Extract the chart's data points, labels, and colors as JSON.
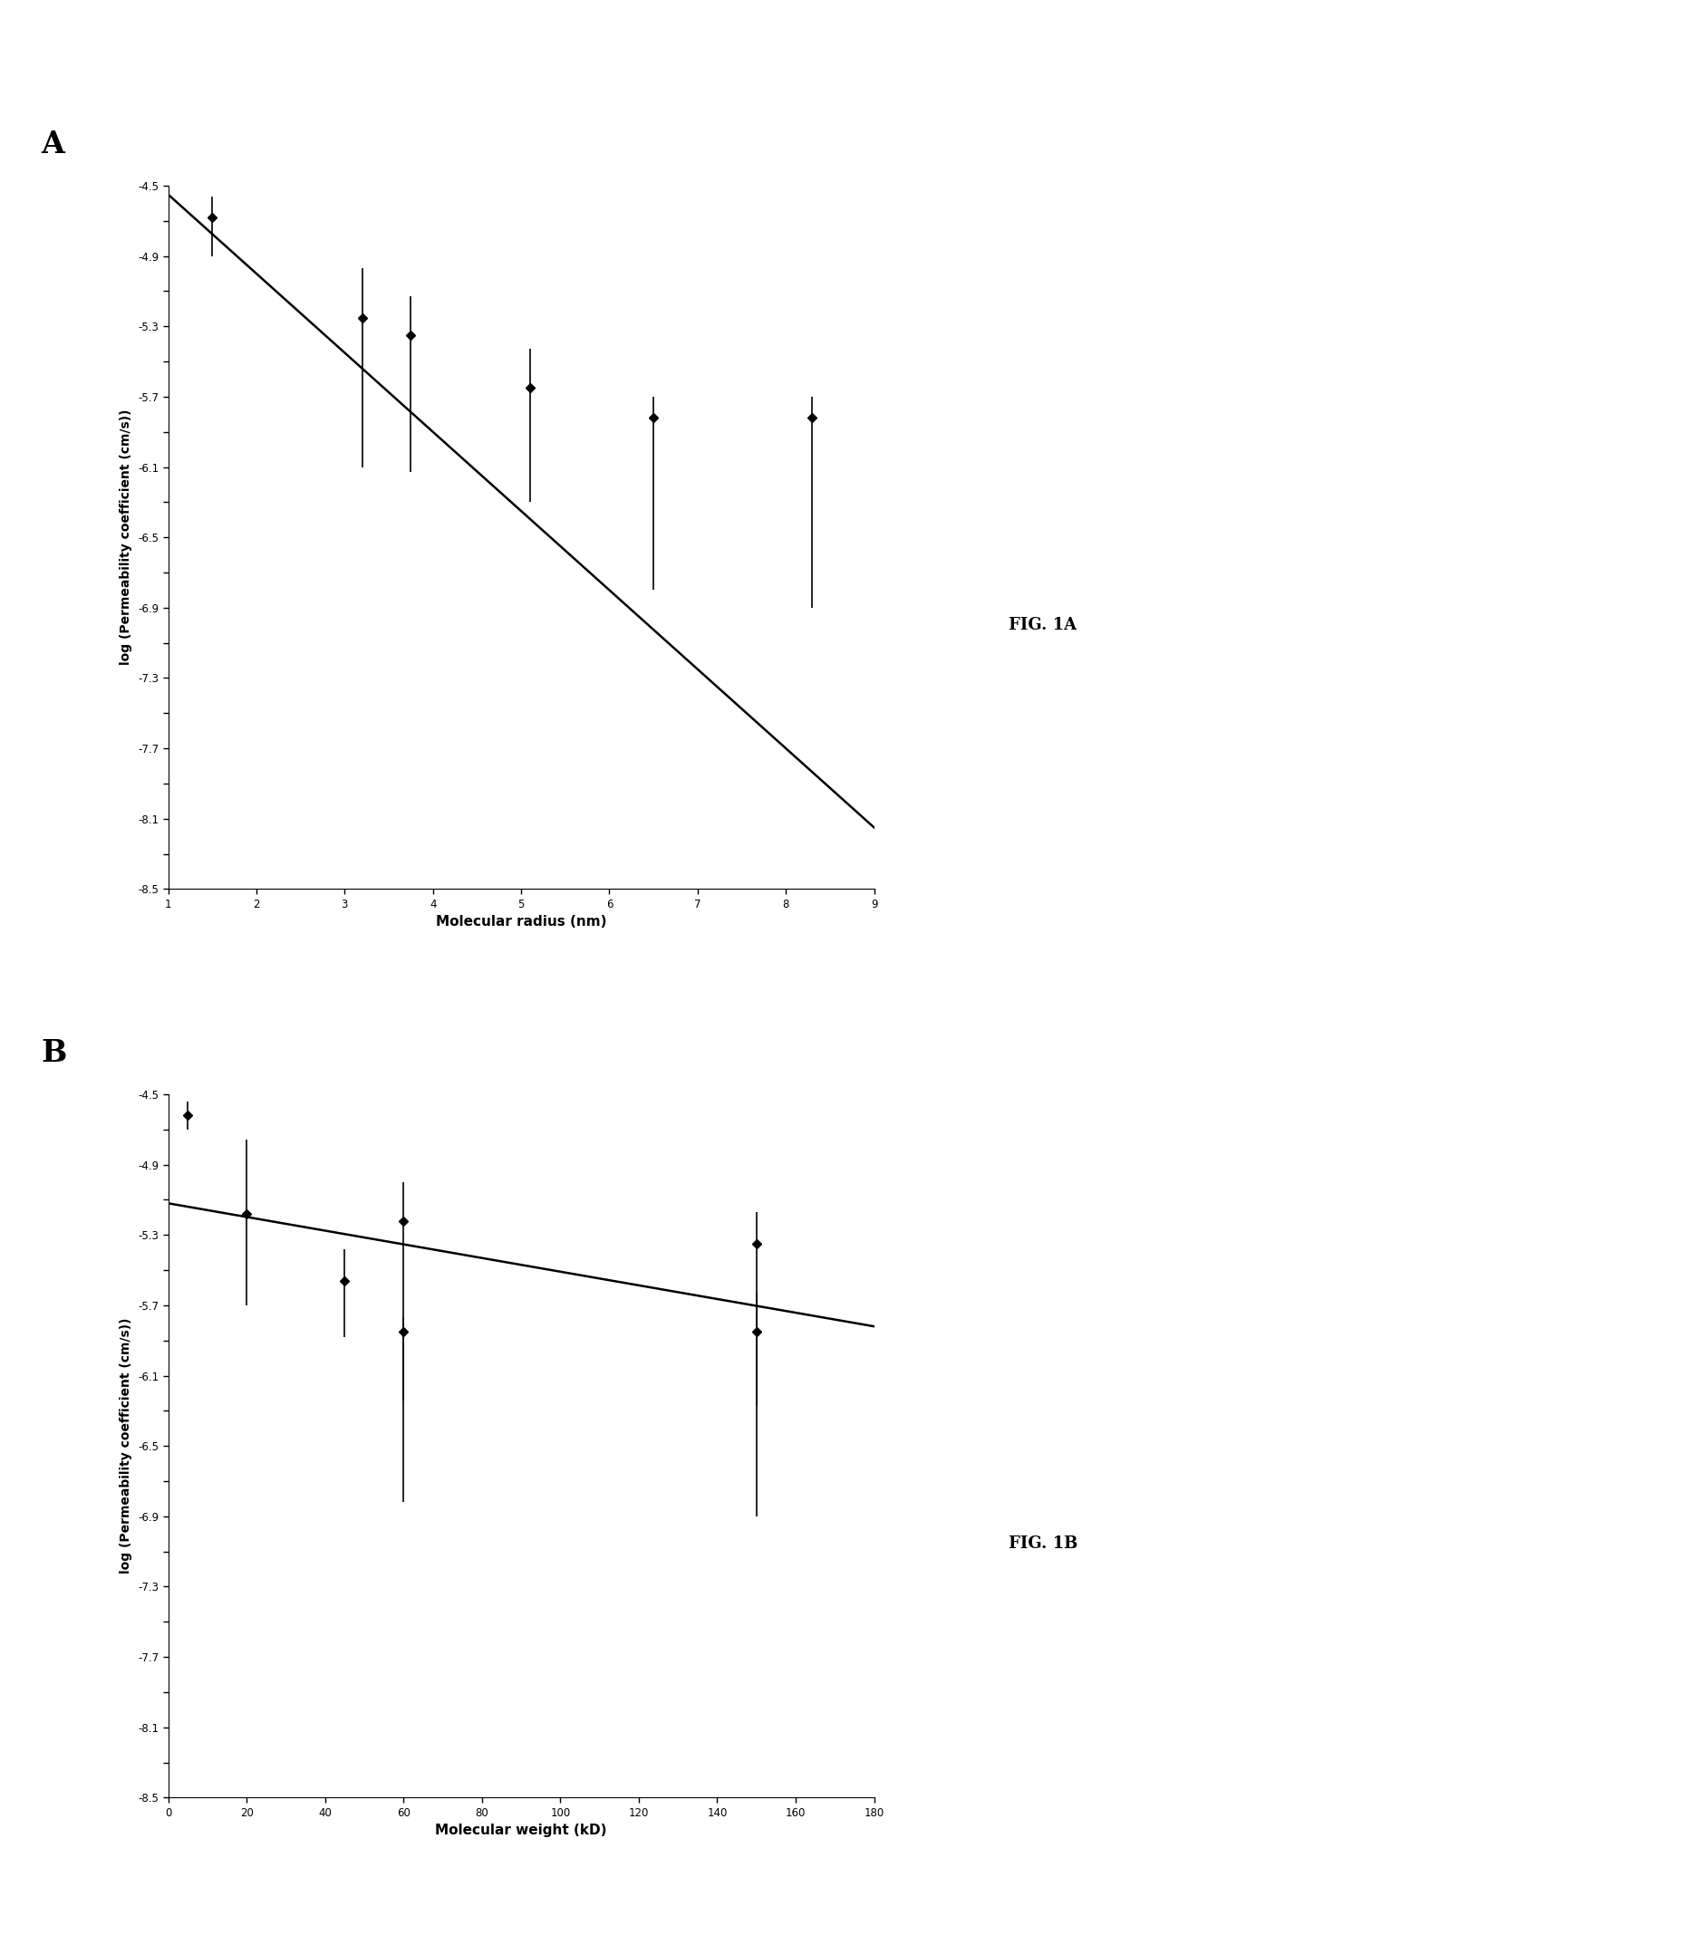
{
  "panel_A": {
    "title": "A",
    "xlabel": "Molecular radius (nm)",
    "ylabel": "log (Permeability coefficient (cm/s))",
    "xlim": [
      1,
      9
    ],
    "ylim": [
      -8.5,
      -4.5
    ],
    "xticks": [
      1,
      2,
      3,
      4,
      5,
      6,
      7,
      8,
      9
    ],
    "yticks": [
      -4.5,
      -4.7,
      -4.9,
      -5.1,
      -5.3,
      -5.5,
      -5.7,
      -5.9,
      -6.1,
      -6.3,
      -6.5,
      -6.7,
      -6.9,
      -7.1,
      -7.3,
      -7.5,
      -7.7,
      -7.9,
      -8.1,
      -8.3,
      -8.5
    ],
    "ytick_labels": [
      "-4.5",
      "",
      "-4.9",
      "",
      "-5.3",
      "",
      "-5.7",
      "",
      "-6.1",
      "",
      "-6.5",
      "",
      "-6.9",
      "",
      "-7.3",
      "",
      "-7.7",
      "",
      "-8.1",
      "",
      "-8.5"
    ],
    "data_x": [
      1.5,
      3.2,
      3.75,
      5.1,
      6.5,
      8.3
    ],
    "data_y": [
      -4.68,
      -5.25,
      -5.35,
      -5.65,
      -5.82,
      -5.82
    ],
    "yerr_upper": [
      0.12,
      0.28,
      0.22,
      0.22,
      0.12,
      0.12
    ],
    "yerr_lower": [
      0.22,
      0.85,
      0.78,
      0.65,
      0.98,
      1.08
    ],
    "fit_x": [
      1.0,
      9.0
    ],
    "fit_y": [
      -4.55,
      -8.15
    ]
  },
  "panel_B": {
    "title": "B",
    "xlabel": "Molecular weight (kD)",
    "ylabel": "log (Permeability coefficient (cm/s))",
    "xlim": [
      0,
      180
    ],
    "ylim": [
      -8.5,
      -4.5
    ],
    "xticks": [
      0,
      20,
      40,
      60,
      80,
      100,
      120,
      140,
      160,
      180
    ],
    "xtick_labels": [
      "0",
      "20",
      "40",
      "60",
      "80",
      "100",
      "120",
      "140",
      "160",
      "180"
    ],
    "yticks": [
      -4.5,
      -4.7,
      -4.9,
      -5.1,
      -5.3,
      -5.5,
      -5.7,
      -5.9,
      -6.1,
      -6.3,
      -6.5,
      -6.7,
      -6.9,
      -7.1,
      -7.3,
      -7.5,
      -7.7,
      -7.9,
      -8.1,
      -8.3,
      -8.5
    ],
    "ytick_labels": [
      "-4.5",
      "",
      "-4.9",
      "",
      "-5.3",
      "",
      "-5.7",
      "",
      "-6.1",
      "",
      "-6.5",
      "",
      "-6.9",
      "",
      "-7.3",
      "",
      "-7.7",
      "",
      "-8.1",
      "",
      "-8.5"
    ],
    "data_x": [
      5,
      20,
      45,
      60,
      60,
      150,
      150
    ],
    "data_y": [
      -4.62,
      -5.18,
      -5.56,
      -5.22,
      -5.85,
      -5.35,
      -5.85
    ],
    "yerr_upper": [
      0.08,
      0.42,
      0.18,
      0.22,
      0.08,
      0.18,
      0.22
    ],
    "yerr_lower": [
      0.08,
      0.52,
      0.32,
      1.02,
      0.97,
      0.92,
      1.05
    ],
    "fit_x": [
      0,
      180
    ],
    "fit_y": [
      -5.12,
      -5.82
    ]
  },
  "fig_label_A": "FIG. 1A",
  "fig_label_B": "FIG. 1B"
}
